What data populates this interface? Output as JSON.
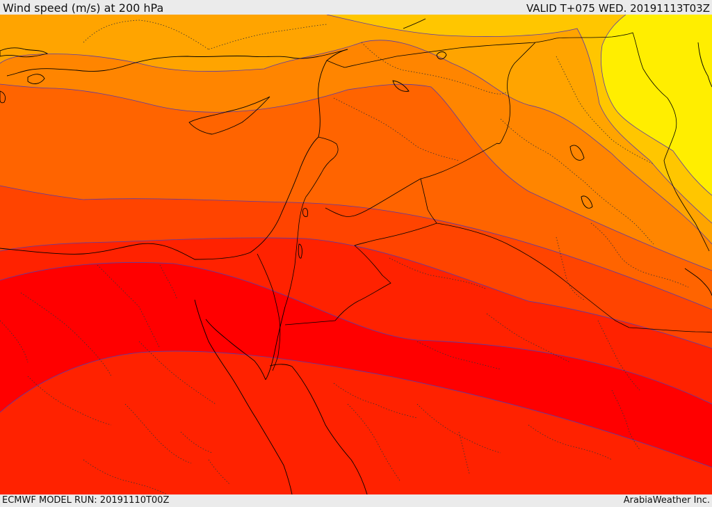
{
  "header": {
    "title": "Wind speed (m/s) at 200 hPa",
    "valid_time": "VALID T+075 WED. 20191113T03Z"
  },
  "footer": {
    "model_run": "ECMWF MODEL RUN: 20191110T00Z",
    "credit": "ArabiaWeather Inc."
  },
  "map": {
    "variable": "wind speed",
    "pressure_level_hPa": 200,
    "units": "m/s",
    "band_colors": [
      "#ffee00",
      "#ffc600",
      "#ffa400",
      "#ff8500",
      "#ff6400",
      "#ff4400",
      "#ff2200",
      "#ff0000"
    ],
    "contour_color": "#5a3aa8",
    "border_color": "#000000"
  }
}
